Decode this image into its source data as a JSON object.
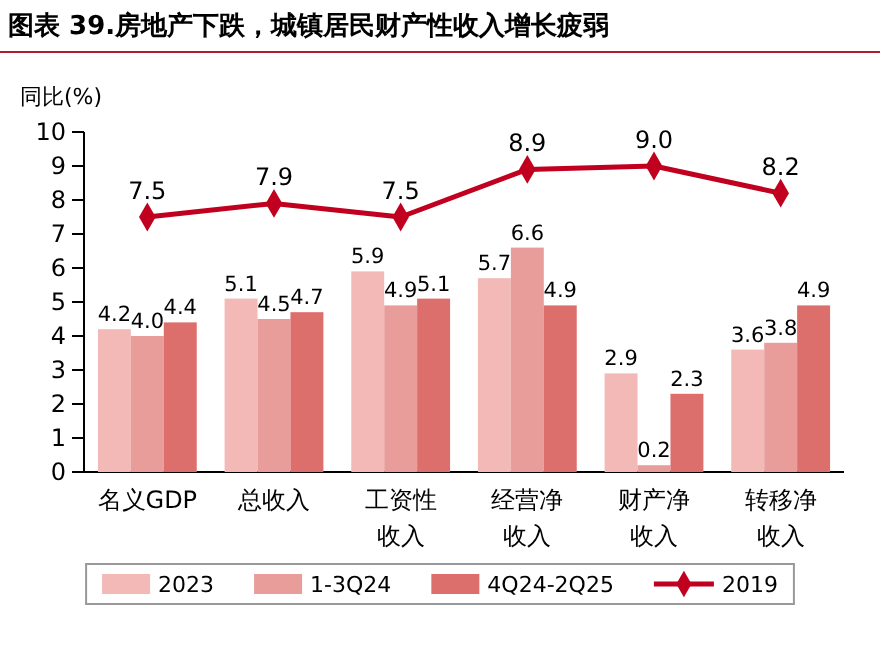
{
  "chart_data": {
    "type": "bar",
    "title": "图表 39.房地产下跌，城镇居民财产性收入增长疲弱",
    "ylabel": "同比(%)",
    "categories": [
      "名义GDP",
      "总收入",
      "工资性收入",
      "经营净收入",
      "财产净收入",
      "转移净收入"
    ],
    "series": [
      {
        "name": "2023",
        "color": "#f2b9b7",
        "values": [
          4.2,
          5.1,
          5.9,
          5.7,
          2.9,
          3.6
        ]
      },
      {
        "name": "1-3Q24",
        "color": "#e89d9b",
        "values": [
          4.0,
          4.5,
          4.9,
          6.6,
          0.2,
          3.8
        ],
        "value_labels": [
          "4.0",
          "4.5",
          "4.9",
          "6.6",
          "0.2",
          "3.8"
        ]
      },
      {
        "name": "4Q24-2Q25",
        "color": "#dc6e6c",
        "values": [
          4.4,
          4.7,
          5.1,
          4.9,
          2.3,
          4.9
        ]
      },
      {
        "name": "2019",
        "type": "line",
        "color": "#c0001e",
        "marker": "diamond",
        "values": [
          7.5,
          7.9,
          7.5,
          8.9,
          9.0,
          8.2
        ],
        "value_labels": [
          "7.5",
          "7.9",
          "7.5",
          "8.9",
          "9.0",
          "8.2"
        ]
      }
    ],
    "ylim": [
      0,
      10
    ],
    "yticks": [
      0,
      1,
      2,
      3,
      4,
      5,
      6,
      7,
      8,
      9,
      10
    ],
    "grid": false,
    "legend": "bottom",
    "data_labels": true
  }
}
